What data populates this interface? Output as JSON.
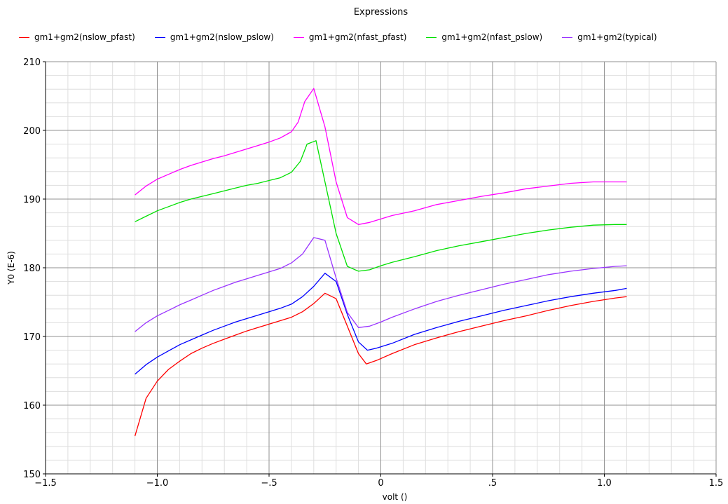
{
  "chart_data": {
    "type": "line",
    "title": "Expressions",
    "xlabel": "volt ()",
    "ylabel": "Y0 (E-6)",
    "xlim": [
      -1.5,
      1.5
    ],
    "ylim": [
      150,
      210
    ],
    "xticks": [
      -1.5,
      -1.0,
      -0.5,
      0,
      0.5,
      1.0,
      1.5
    ],
    "xtick_labels": [
      "−1.5",
      "−1.0",
      "−.5",
      "0",
      ".5",
      "1.0",
      "1.5"
    ],
    "yticks": [
      150,
      160,
      170,
      180,
      190,
      200,
      210
    ],
    "ytick_labels": [
      "150",
      "160",
      "170",
      "180",
      "190",
      "200",
      "210"
    ],
    "grid": true,
    "legend_position": "top",
    "series": [
      {
        "name": "gm1+gm2(nslow_pfast)",
        "color": "#ff0000",
        "points": [
          [
            -1.1,
            155.5
          ],
          [
            -1.05,
            161.0
          ],
          [
            -1.0,
            163.5
          ],
          [
            -0.95,
            165.2
          ],
          [
            -0.9,
            166.4
          ],
          [
            -0.85,
            167.5
          ],
          [
            -0.8,
            168.3
          ],
          [
            -0.75,
            169.0
          ],
          [
            -0.7,
            169.6
          ],
          [
            -0.65,
            170.2
          ],
          [
            -0.6,
            170.8
          ],
          [
            -0.55,
            171.3
          ],
          [
            -0.5,
            171.8
          ],
          [
            -0.45,
            172.3
          ],
          [
            -0.4,
            172.8
          ],
          [
            -0.35,
            173.6
          ],
          [
            -0.3,
            174.8
          ],
          [
            -0.25,
            176.3
          ],
          [
            -0.2,
            175.5
          ],
          [
            -0.15,
            171.5
          ],
          [
            -0.1,
            167.5
          ],
          [
            -0.065,
            166.0
          ],
          [
            -0.02,
            166.5
          ],
          [
            0.05,
            167.5
          ],
          [
            0.15,
            168.8
          ],
          [
            0.25,
            169.8
          ],
          [
            0.35,
            170.7
          ],
          [
            0.45,
            171.5
          ],
          [
            0.55,
            172.3
          ],
          [
            0.65,
            173.0
          ],
          [
            0.75,
            173.8
          ],
          [
            0.85,
            174.5
          ],
          [
            0.95,
            175.1
          ],
          [
            1.05,
            175.6
          ],
          [
            1.1,
            175.8
          ]
        ]
      },
      {
        "name": "gm1+gm2(nslow_pslow)",
        "color": "#0000ff",
        "points": [
          [
            -1.1,
            164.5
          ],
          [
            -1.05,
            165.9
          ],
          [
            -1.0,
            167.0
          ],
          [
            -0.95,
            167.9
          ],
          [
            -0.9,
            168.8
          ],
          [
            -0.85,
            169.5
          ],
          [
            -0.8,
            170.2
          ],
          [
            -0.75,
            170.9
          ],
          [
            -0.7,
            171.5
          ],
          [
            -0.65,
            172.1
          ],
          [
            -0.6,
            172.6
          ],
          [
            -0.55,
            173.1
          ],
          [
            -0.5,
            173.6
          ],
          [
            -0.45,
            174.1
          ],
          [
            -0.4,
            174.7
          ],
          [
            -0.35,
            175.8
          ],
          [
            -0.3,
            177.3
          ],
          [
            -0.25,
            179.2
          ],
          [
            -0.2,
            178.0
          ],
          [
            -0.15,
            173.2
          ],
          [
            -0.1,
            169.2
          ],
          [
            -0.06,
            168.0
          ],
          [
            -0.02,
            168.3
          ],
          [
            0.05,
            169.0
          ],
          [
            0.15,
            170.3
          ],
          [
            0.25,
            171.3
          ],
          [
            0.35,
            172.2
          ],
          [
            0.45,
            173.0
          ],
          [
            0.55,
            173.8
          ],
          [
            0.65,
            174.5
          ],
          [
            0.75,
            175.2
          ],
          [
            0.85,
            175.8
          ],
          [
            0.95,
            176.3
          ],
          [
            1.05,
            176.7
          ],
          [
            1.1,
            177.0
          ]
        ]
      },
      {
        "name": "gm1+gm2(nfast_pfast)",
        "color": "#ff00ff",
        "points": [
          [
            -1.1,
            190.6
          ],
          [
            -1.05,
            191.9
          ],
          [
            -1.0,
            192.9
          ],
          [
            -0.95,
            193.6
          ],
          [
            -0.9,
            194.3
          ],
          [
            -0.85,
            194.9
          ],
          [
            -0.8,
            195.4
          ],
          [
            -0.75,
            195.9
          ],
          [
            -0.7,
            196.3
          ],
          [
            -0.65,
            196.8
          ],
          [
            -0.6,
            197.3
          ],
          [
            -0.55,
            197.8
          ],
          [
            -0.5,
            198.3
          ],
          [
            -0.45,
            198.9
          ],
          [
            -0.4,
            199.8
          ],
          [
            -0.37,
            201.2
          ],
          [
            -0.34,
            204.2
          ],
          [
            -0.3,
            206.1
          ],
          [
            -0.25,
            200.5
          ],
          [
            -0.2,
            192.5
          ],
          [
            -0.15,
            187.3
          ],
          [
            -0.1,
            186.3
          ],
          [
            -0.05,
            186.6
          ],
          [
            0.0,
            187.1
          ],
          [
            0.05,
            187.6
          ],
          [
            0.15,
            188.3
          ],
          [
            0.25,
            189.2
          ],
          [
            0.35,
            189.8
          ],
          [
            0.45,
            190.4
          ],
          [
            0.55,
            190.9
          ],
          [
            0.65,
            191.5
          ],
          [
            0.75,
            191.9
          ],
          [
            0.85,
            192.3
          ],
          [
            0.95,
            192.5
          ],
          [
            1.05,
            192.5
          ],
          [
            1.1,
            192.5
          ]
        ]
      },
      {
        "name": "gm1+gm2(nfast_pslow)",
        "color": "#00e000",
        "points": [
          [
            -1.1,
            186.7
          ],
          [
            -1.05,
            187.5
          ],
          [
            -1.0,
            188.3
          ],
          [
            -0.95,
            188.9
          ],
          [
            -0.9,
            189.5
          ],
          [
            -0.85,
            190.0
          ],
          [
            -0.8,
            190.4
          ],
          [
            -0.75,
            190.8
          ],
          [
            -0.7,
            191.2
          ],
          [
            -0.65,
            191.6
          ],
          [
            -0.6,
            192.0
          ],
          [
            -0.55,
            192.3
          ],
          [
            -0.5,
            192.7
          ],
          [
            -0.45,
            193.1
          ],
          [
            -0.4,
            193.9
          ],
          [
            -0.36,
            195.5
          ],
          [
            -0.33,
            198.0
          ],
          [
            -0.29,
            198.5
          ],
          [
            -0.25,
            192.5
          ],
          [
            -0.2,
            185.0
          ],
          [
            -0.15,
            180.2
          ],
          [
            -0.1,
            179.5
          ],
          [
            -0.05,
            179.7
          ],
          [
            0.0,
            180.3
          ],
          [
            0.05,
            180.8
          ],
          [
            0.15,
            181.6
          ],
          [
            0.25,
            182.5
          ],
          [
            0.35,
            183.2
          ],
          [
            0.45,
            183.8
          ],
          [
            0.55,
            184.4
          ],
          [
            0.65,
            185.0
          ],
          [
            0.75,
            185.5
          ],
          [
            0.85,
            185.9
          ],
          [
            0.95,
            186.2
          ],
          [
            1.05,
            186.3
          ],
          [
            1.1,
            186.3
          ]
        ]
      },
      {
        "name": "gm1+gm2(typical)",
        "color": "#9933ff",
        "points": [
          [
            -1.1,
            170.7
          ],
          [
            -1.05,
            172.0
          ],
          [
            -1.0,
            173.0
          ],
          [
            -0.95,
            173.8
          ],
          [
            -0.9,
            174.6
          ],
          [
            -0.85,
            175.3
          ],
          [
            -0.8,
            176.0
          ],
          [
            -0.75,
            176.7
          ],
          [
            -0.7,
            177.3
          ],
          [
            -0.65,
            177.9
          ],
          [
            -0.6,
            178.4
          ],
          [
            -0.55,
            178.9
          ],
          [
            -0.5,
            179.4
          ],
          [
            -0.45,
            179.9
          ],
          [
            -0.4,
            180.7
          ],
          [
            -0.35,
            182.0
          ],
          [
            -0.3,
            184.4
          ],
          [
            -0.25,
            184.0
          ],
          [
            -0.2,
            178.5
          ],
          [
            -0.15,
            173.5
          ],
          [
            -0.1,
            171.3
          ],
          [
            -0.05,
            171.5
          ],
          [
            0.0,
            172.1
          ],
          [
            0.05,
            172.8
          ],
          [
            0.15,
            174.0
          ],
          [
            0.25,
            175.1
          ],
          [
            0.35,
            176.0
          ],
          [
            0.45,
            176.8
          ],
          [
            0.55,
            177.6
          ],
          [
            0.65,
            178.3
          ],
          [
            0.75,
            179.0
          ],
          [
            0.85,
            179.5
          ],
          [
            0.95,
            179.9
          ],
          [
            1.05,
            180.2
          ],
          [
            1.1,
            180.3
          ]
        ]
      }
    ]
  }
}
